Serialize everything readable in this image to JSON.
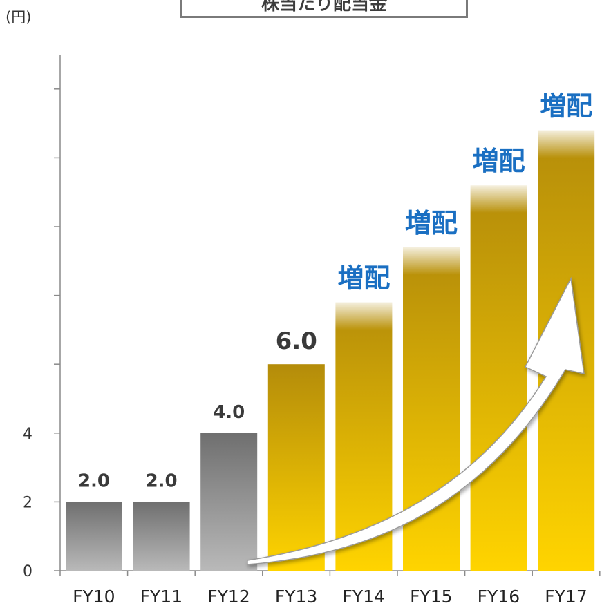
{
  "title": "株当たり配当金",
  "unit": "(円)",
  "chart_data": {
    "type": "bar",
    "categories": [
      "FY10",
      "FY11",
      "FY12",
      "FY13",
      "FY14",
      "FY15",
      "FY16",
      "FY17"
    ],
    "values": [
      2.0,
      2.0,
      4.0,
      6.0,
      null,
      null,
      null,
      null
    ],
    "approx_bar_heights": [
      2.0,
      2.0,
      4.0,
      6.0,
      7.8,
      9.4,
      11.2,
      12.8
    ],
    "data_labels": [
      "2.0",
      "2.0",
      "4.0",
      "6.0",
      "増配",
      "増配",
      "増配",
      "増配"
    ],
    "ylim": [
      0,
      15
    ],
    "yticks": [
      0,
      2,
      4,
      6,
      8,
      10,
      12,
      14
    ],
    "ytick_labels": [
      "0",
      "2",
      "4",
      "",
      "",
      "",
      "",
      ""
    ],
    "colors": {
      "gray_top": "#6f6f6f",
      "gray_bottom": "#b9b9b9",
      "gold_top": "#b48c0a",
      "gold_bottom": "#ffd400",
      "value_label": "#3a3a3a",
      "increase_label": "#1a6fc2",
      "axis": "#8a8a8a"
    },
    "grid": false,
    "legend": "none"
  }
}
